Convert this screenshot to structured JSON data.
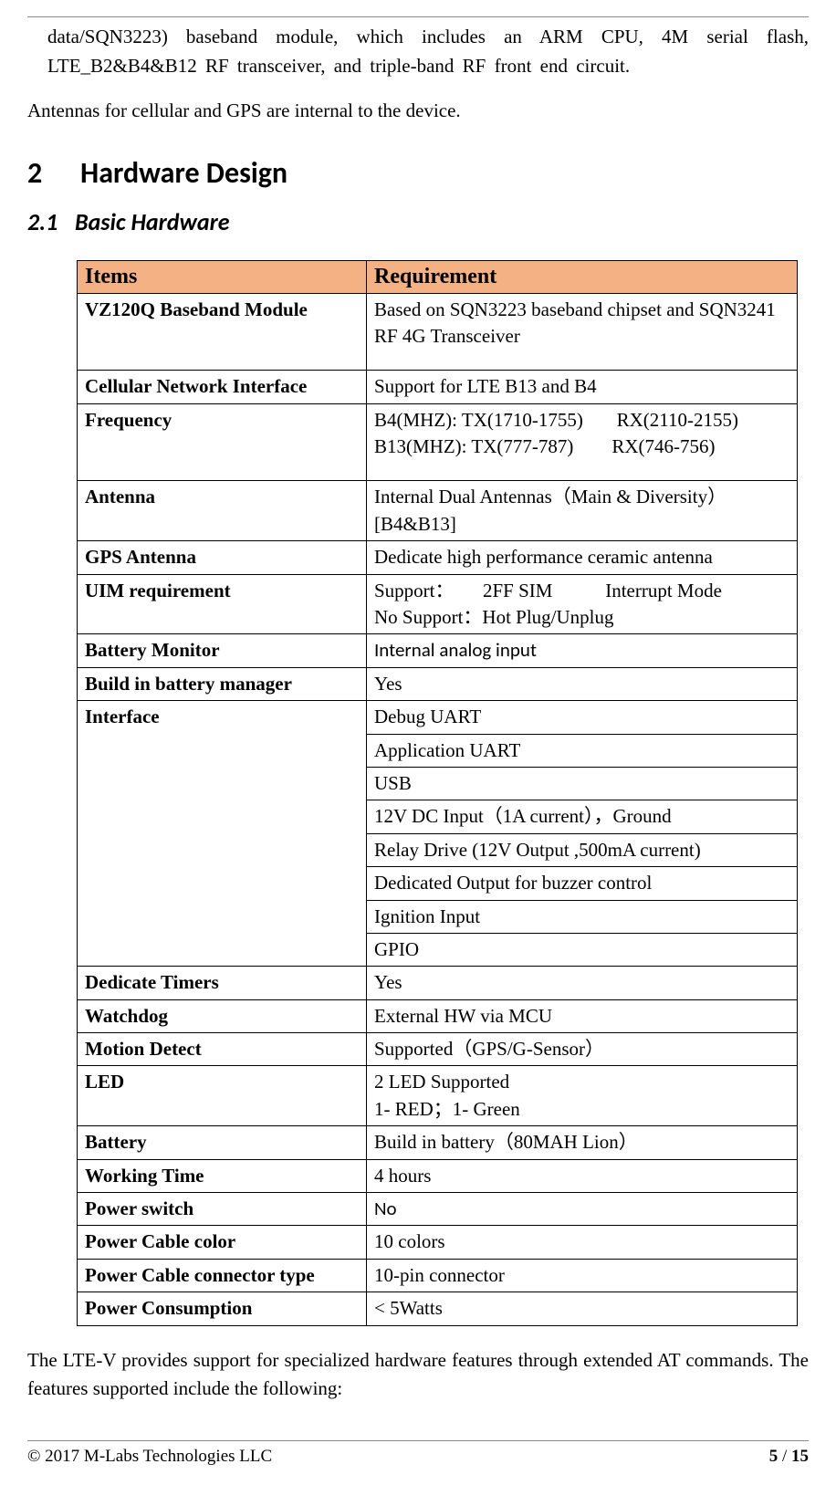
{
  "intro": {
    "line1": "data/SQN3223) baseband module, which includes an ARM CPU, 4M serial flash, LTE_B2&B4&B12 RF transceiver, and triple-band RF front end circuit.",
    "line2": "Antennas for cellular and GPS are internal to the device."
  },
  "section": {
    "num": "2",
    "title": "Hardware Design"
  },
  "subsection": {
    "num": "2.1",
    "title": "Basic Hardware"
  },
  "table": {
    "headers": {
      "items": "Items",
      "req": "Requirement"
    },
    "rows": [
      {
        "item": "VZ120Q Baseband Module",
        "req": "Based on SQN3223 baseband chipset and SQN3241 RF 4G Transceiver",
        "pad_bottom": true
      },
      {
        "item": "Cellular Network  Interface",
        "req": "Support for LTE B13 and  B4"
      },
      {
        "item": "Frequency",
        "req": "B4(MHZ): TX(1710-1755)       RX(2110-2155)\nB13(MHZ): TX(777-787)        RX(746-756)",
        "pre": true,
        "pad_bottom": true
      },
      {
        "item": "Antenna",
        "req": "Internal Dual Antennas（Main & Diversity）[B4&B13]"
      },
      {
        "item": "GPS Antenna",
        "req": "Dedicate high performance ceramic antenna"
      },
      {
        "item": "UIM requirement",
        "req": "Support：      2FF SIM           Interrupt Mode\nNo Support：Hot Plug/Unplug",
        "pre": true
      },
      {
        "item": "Battery Monitor",
        "req": "Internal analog input",
        "sans": true
      },
      {
        "item": "Build in battery manager",
        "req": "Yes"
      },
      {
        "item": "Interface",
        "rowspan": 8,
        "req": "Debug UART"
      },
      {
        "req": "Application UART"
      },
      {
        "req": "USB"
      },
      {
        "req": "12V DC Input（1A current），Ground"
      },
      {
        "req": "Relay Drive (12V Output ,500mA current)"
      },
      {
        "req": "Dedicated Output for buzzer control"
      },
      {
        "req": "Ignition Input"
      },
      {
        "req": "GPIO"
      },
      {
        "item": "Dedicate Timers",
        "req": "Yes"
      },
      {
        "item": "Watchdog",
        "req": "External HW via MCU"
      },
      {
        "item": "Motion Detect",
        "req": "Supported（GPS/G-Sensor）"
      },
      {
        "item": "LED",
        "req": "2 LED Supported\n1- RED；1- Green",
        "pre": true
      },
      {
        "item": "Battery",
        "req": "Build in battery（80MAH Lion）"
      },
      {
        "item": "Working Time",
        "req": "4 hours"
      },
      {
        "item": "Power switch",
        "req": "No",
        "sans": true
      },
      {
        "item": "Power Cable color",
        "req": "10 colors"
      },
      {
        "item": "Power Cable connector type",
        "req": "10-pin connector"
      },
      {
        "item": "Power Consumption",
        "req": "< 5Watts"
      }
    ]
  },
  "outro": "The LTE-V provides support for specialized hardware features through extended AT commands. The features supported include the following:",
  "footer": {
    "copy": "© 2017 M-Labs Technologies LLC",
    "page_current": "5",
    "page_sep": " / ",
    "page_total": "15"
  }
}
